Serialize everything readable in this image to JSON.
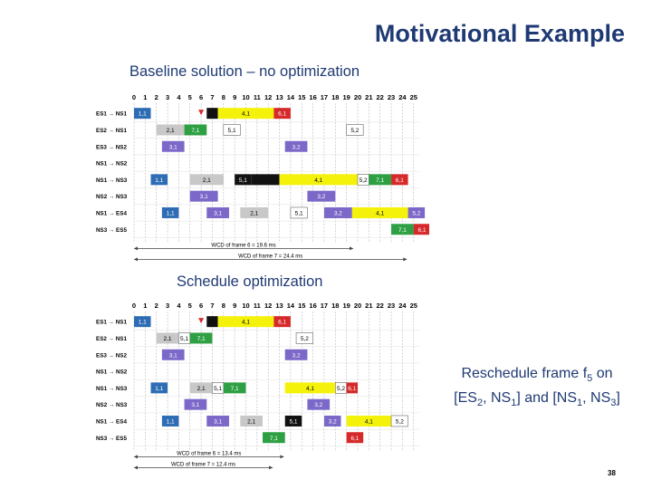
{
  "slide": {
    "title": "Motivational Example",
    "caption_baseline": "Baseline solution – no optimization",
    "caption_optimized": "Schedule optimization",
    "note_line1_a": "Reschedule frame f",
    "note_line1_sub": "5",
    "note_line1_b": " on",
    "note_line2_a": "[ES",
    "note_line2_sub1": "2",
    "note_line2_b": ", NS",
    "note_line2_sub2": "1",
    "note_line2_c": "] and [NS",
    "note_line2_sub3": "1",
    "note_line2_d": ", NS",
    "note_line2_sub4": "3",
    "note_line2_e": "]",
    "page_number": "38"
  },
  "colors": {
    "blue": "#2e6db4",
    "gray": "#c8c8c8",
    "green": "#2ea043",
    "purple": "#7b68c8",
    "yellow": "#f4f20a",
    "red": "#d62a2a",
    "black": "#111111",
    "white": "#ffffff",
    "grid": "#b9b9b9"
  },
  "diagrams": [
    {
      "ticks": [
        "0",
        "1",
        "2",
        "3",
        "4",
        "5",
        "6",
        "7",
        "8",
        "9",
        "10",
        "11",
        "12",
        "13",
        "14",
        "15",
        "16",
        "17",
        "18",
        "19",
        "20",
        "21",
        "22",
        "23",
        "24",
        "25"
      ],
      "rows": [
        "ES1 → NS1",
        "ES2 → NS1",
        "ES3 → NS2",
        "NS1 → NS2",
        "NS1 → NS3",
        "NS2 → NS3",
        "NS1 → ES4",
        "NS3 → ES5"
      ],
      "bars": [
        {
          "row": 0,
          "start": 0,
          "end": 1.5,
          "color": "blue",
          "label": "1,1"
        },
        {
          "row": 0,
          "start": 6.5,
          "end": 7.5,
          "color": "black",
          "label": ""
        },
        {
          "row": 0,
          "start": 7.5,
          "end": 12.5,
          "color": "yellow",
          "label": "4,1"
        },
        {
          "row": 0,
          "start": 12.5,
          "end": 14,
          "color": "red",
          "label": "6,1"
        },
        {
          "row": 1,
          "start": 2,
          "end": 4.5,
          "color": "gray",
          "label": "2,1"
        },
        {
          "row": 1,
          "start": 4.5,
          "end": 6.5,
          "color": "green",
          "label": "7,1"
        },
        {
          "row": 1,
          "start": 8,
          "end": 9.5,
          "color": "white",
          "label": "5,1"
        },
        {
          "row": 1,
          "start": 19,
          "end": 20.5,
          "color": "white",
          "label": "5,2"
        },
        {
          "row": 2,
          "start": 2.5,
          "end": 4.5,
          "color": "purple",
          "label": "3,1"
        },
        {
          "row": 2,
          "start": 13.5,
          "end": 15.5,
          "color": "purple",
          "label": "3,2"
        },
        {
          "row": 4,
          "start": 1.5,
          "end": 3,
          "color": "blue",
          "label": "1,1"
        },
        {
          "row": 4,
          "start": 5,
          "end": 8,
          "color": "gray",
          "label": "2,1"
        },
        {
          "row": 4,
          "start": 9,
          "end": 10.5,
          "color": "black",
          "label": "5,1"
        },
        {
          "row": 4,
          "start": 10.5,
          "end": 13,
          "color": "black",
          "label": ""
        },
        {
          "row": 4,
          "start": 13,
          "end": 20,
          "color": "yellow",
          "label": "4,1"
        },
        {
          "row": 4,
          "start": 20,
          "end": 21,
          "color": "white",
          "label": "5,2"
        },
        {
          "row": 4,
          "start": 21,
          "end": 23,
          "color": "green",
          "label": "7,1"
        },
        {
          "row": 4,
          "start": 23,
          "end": 24.5,
          "color": "red",
          "label": "6,1"
        },
        {
          "row": 5,
          "start": 5,
          "end": 7.5,
          "color": "purple",
          "label": "3,1"
        },
        {
          "row": 5,
          "start": 15.5,
          "end": 18,
          "color": "purple",
          "label": "3,2"
        },
        {
          "row": 6,
          "start": 2.5,
          "end": 4,
          "color": "blue",
          "label": "1,1"
        },
        {
          "row": 6,
          "start": 6.5,
          "end": 8.5,
          "color": "purple",
          "label": "3,1"
        },
        {
          "row": 6,
          "start": 9.5,
          "end": 12,
          "color": "gray",
          "label": "2,1"
        },
        {
          "row": 6,
          "start": 14,
          "end": 15.5,
          "color": "white",
          "label": "5,1"
        },
        {
          "row": 6,
          "start": 17,
          "end": 19.5,
          "color": "purple",
          "label": "3,2"
        },
        {
          "row": 6,
          "start": 19.5,
          "end": 24.5,
          "color": "yellow",
          "label": "4,1"
        },
        {
          "row": 6,
          "start": 24.5,
          "end": 26,
          "color": "purple",
          "label": "5,2"
        },
        {
          "row": 7,
          "start": 23,
          "end": 25,
          "color": "green",
          "label": "7,1"
        },
        {
          "row": 7,
          "start": 25,
          "end": 26.5,
          "color": "red",
          "label": "6,1"
        }
      ],
      "wcd_frame6": "WCD of frame 6 = 19.6 ms",
      "wcd_frame7": "WCD of frame 7 = 24.4 ms",
      "wcd6_end": 19.6,
      "wcd7_end": 24.4
    },
    {
      "ticks": [
        "0",
        "1",
        "2",
        "3",
        "4",
        "5",
        "6",
        "7",
        "8",
        "9",
        "10",
        "11",
        "12",
        "13",
        "14",
        "15",
        "16",
        "17",
        "18",
        "19",
        "20",
        "21",
        "22",
        "23",
        "24",
        "25"
      ],
      "rows": [
        "ES1 → NS1",
        "ES2 → NS1",
        "ES3 → NS2",
        "NS1 → NS2",
        "NS1 → NS3",
        "NS2 → NS3",
        "NS1 → ES4",
        "NS3 → ES5"
      ],
      "bars": [
        {
          "row": 0,
          "start": 0,
          "end": 1.5,
          "color": "blue",
          "label": "1,1"
        },
        {
          "row": 0,
          "start": 6.5,
          "end": 7.5,
          "color": "black",
          "label": ""
        },
        {
          "row": 0,
          "start": 7.5,
          "end": 12.5,
          "color": "yellow",
          "label": "4,1"
        },
        {
          "row": 0,
          "start": 12.5,
          "end": 14,
          "color": "red",
          "label": "6,1"
        },
        {
          "row": 1,
          "start": 2,
          "end": 4,
          "color": "gray",
          "label": "2,1"
        },
        {
          "row": 1,
          "start": 4,
          "end": 5,
          "color": "white",
          "label": "5,1"
        },
        {
          "row": 1,
          "start": 5,
          "end": 7,
          "color": "green",
          "label": "7,1"
        },
        {
          "row": 1,
          "start": 14.5,
          "end": 16,
          "color": "white",
          "label": "5,2"
        },
        {
          "row": 2,
          "start": 2.5,
          "end": 4.5,
          "color": "purple",
          "label": "3,1"
        },
        {
          "row": 2,
          "start": 13.5,
          "end": 15.5,
          "color": "purple",
          "label": "3,2"
        },
        {
          "row": 4,
          "start": 1.5,
          "end": 3,
          "color": "blue",
          "label": "1,1"
        },
        {
          "row": 4,
          "start": 5,
          "end": 7,
          "color": "gray",
          "label": "2,1"
        },
        {
          "row": 4,
          "start": 7,
          "end": 8,
          "color": "white",
          "label": "5,1"
        },
        {
          "row": 4,
          "start": 8,
          "end": 10,
          "color": "green",
          "label": "7,1"
        },
        {
          "row": 4,
          "start": 13.5,
          "end": 18,
          "color": "yellow",
          "label": "4,1"
        },
        {
          "row": 4,
          "start": 18,
          "end": 19,
          "color": "white",
          "label": "5,2"
        },
        {
          "row": 4,
          "start": 19,
          "end": 20,
          "color": "red",
          "label": "6,1"
        },
        {
          "row": 5,
          "start": 4.5,
          "end": 6.5,
          "color": "purple",
          "label": "3,1"
        },
        {
          "row": 5,
          "start": 15.5,
          "end": 17.5,
          "color": "purple",
          "label": "3,2"
        },
        {
          "row": 6,
          "start": 2.5,
          "end": 4,
          "color": "blue",
          "label": "1,1"
        },
        {
          "row": 6,
          "start": 6.5,
          "end": 8.5,
          "color": "purple",
          "label": "3,1"
        },
        {
          "row": 6,
          "start": 9.5,
          "end": 11.5,
          "color": "gray",
          "label": "2,1"
        },
        {
          "row": 6,
          "start": 13.5,
          "end": 15,
          "color": "black",
          "label": "5,1"
        },
        {
          "row": 6,
          "start": 17,
          "end": 18.5,
          "color": "purple",
          "label": "3,2"
        },
        {
          "row": 6,
          "start": 19,
          "end": 23,
          "color": "yellow",
          "label": "4,1"
        },
        {
          "row": 6,
          "start": 23,
          "end": 24.5,
          "color": "white",
          "label": "5,2"
        },
        {
          "row": 7,
          "start": 11.5,
          "end": 13.5,
          "color": "green",
          "label": "7,1"
        },
        {
          "row": 7,
          "start": 19,
          "end": 20.5,
          "color": "red",
          "label": "6,1"
        }
      ],
      "wcd_frame6": "WCD of frame 6 = 13.4 ms",
      "wcd_frame7": "WCD of frame 7 = 12.4 ms",
      "wcd6_end": 13.4,
      "wcd7_end": 12.4
    }
  ]
}
